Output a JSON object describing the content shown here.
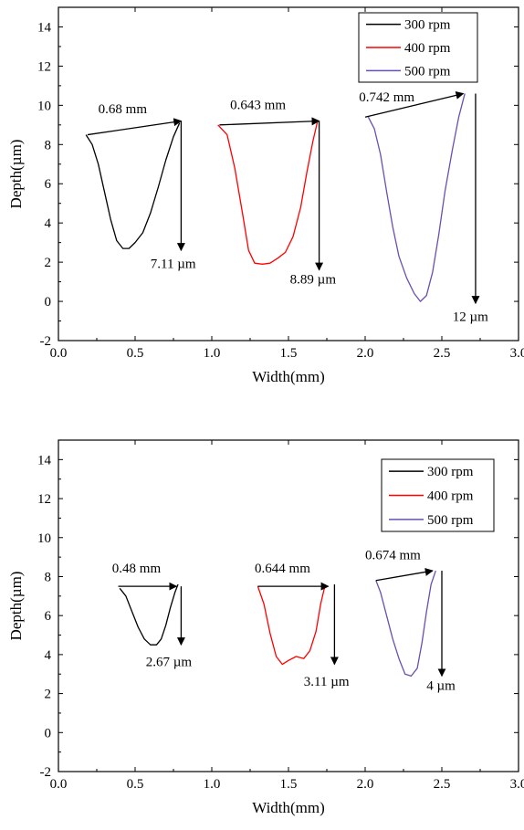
{
  "chart_data": [
    {
      "type": "line",
      "xlabel": "Width(mm)",
      "ylabel": "Depth(µm)",
      "xlim": [
        0.0,
        3.0
      ],
      "ylim": [
        -2,
        15
      ],
      "xticks": [
        "0.0",
        "0.5",
        "1.0",
        "1.5",
        "2.0",
        "2.5",
        "3.0"
      ],
      "yticks": [
        "-2",
        "0",
        "2",
        "4",
        "6",
        "8",
        "10",
        "12",
        "14"
      ],
      "legend_position": "top-right",
      "series": [
        {
          "name": "300 rpm",
          "color": "#000000",
          "x": [
            0.18,
            0.22,
            0.26,
            0.3,
            0.34,
            0.38,
            0.42,
            0.46,
            0.5,
            0.55,
            0.6,
            0.65,
            0.7,
            0.75,
            0.79
          ],
          "y": [
            8.5,
            8.0,
            7.0,
            5.6,
            4.2,
            3.1,
            2.7,
            2.7,
            3.0,
            3.5,
            4.5,
            5.8,
            7.2,
            8.4,
            9.1
          ]
        },
        {
          "name": "400 rpm",
          "color": "#ff0000",
          "x": [
            1.04,
            1.1,
            1.15,
            1.2,
            1.24,
            1.28,
            1.33,
            1.38,
            1.43,
            1.48,
            1.53,
            1.58,
            1.62,
            1.66,
            1.69
          ],
          "y": [
            9.0,
            8.5,
            6.8,
            4.5,
            2.6,
            1.95,
            1.9,
            1.95,
            2.2,
            2.5,
            3.3,
            4.8,
            6.6,
            8.2,
            9.2
          ]
        },
        {
          "name": "500 rpm",
          "color": "#6a4fb0",
          "x": [
            2.02,
            2.06,
            2.1,
            2.14,
            2.18,
            2.22,
            2.27,
            2.32,
            2.36,
            2.4,
            2.44,
            2.48,
            2.52,
            2.57,
            2.61,
            2.65
          ],
          "y": [
            9.4,
            8.8,
            7.5,
            5.6,
            3.8,
            2.3,
            1.2,
            0.4,
            0.0,
            0.3,
            1.5,
            3.4,
            5.6,
            7.8,
            9.4,
            10.6
          ]
        }
      ],
      "annotations": [
        {
          "text": "0.68 mm",
          "kind": "width",
          "x1": 0.19,
          "y1": 8.5,
          "x2": 0.8,
          "y2": 9.2,
          "label_x": 0.26,
          "label_y": 9.6
        },
        {
          "text": "7.11 µm",
          "kind": "depth",
          "x1": 0.8,
          "y1": 9.2,
          "x2": 0.8,
          "y2": 2.6,
          "label_x": 0.6,
          "label_y": 1.7
        },
        {
          "text": "0.643 mm",
          "kind": "width",
          "x1": 1.05,
          "y1": 9.0,
          "x2": 1.7,
          "y2": 9.2,
          "label_x": 1.12,
          "label_y": 9.8
        },
        {
          "text": "8.89 µm",
          "kind": "depth",
          "x1": 1.7,
          "y1": 9.2,
          "x2": 1.7,
          "y2": 1.6,
          "label_x": 1.51,
          "label_y": 0.9
        },
        {
          "text": "0.742 mm",
          "kind": "width",
          "x1": 2.0,
          "y1": 9.4,
          "x2": 2.64,
          "y2": 10.6,
          "label_x": 1.96,
          "label_y": 10.2
        },
        {
          "text": "12 µm",
          "kind": "depth",
          "x1": 2.72,
          "y1": 10.6,
          "x2": 2.72,
          "y2": -0.1,
          "label_x": 2.57,
          "label_y": -1.0
        }
      ]
    },
    {
      "type": "line",
      "xlabel": "Width(mm)",
      "ylabel": "Depth(µm)",
      "xlim": [
        0.0,
        3.0
      ],
      "ylim": [
        -2,
        15
      ],
      "xticks": [
        "0.0",
        "0.5",
        "1.0",
        "1.5",
        "2.0",
        "2.5",
        "3.0"
      ],
      "yticks": [
        "-2",
        "0",
        "2",
        "4",
        "6",
        "8",
        "10",
        "12",
        "14"
      ],
      "legend_position": "top-right",
      "series": [
        {
          "name": "300 rpm",
          "color": "#000000",
          "x": [
            0.4,
            0.44,
            0.48,
            0.52,
            0.56,
            0.6,
            0.64,
            0.67,
            0.7,
            0.73,
            0.76,
            0.78
          ],
          "y": [
            7.4,
            7.0,
            6.2,
            5.4,
            4.8,
            4.5,
            4.5,
            4.8,
            5.5,
            6.4,
            7.2,
            7.6
          ]
        },
        {
          "name": "400 rpm",
          "color": "#ff0000",
          "x": [
            1.3,
            1.34,
            1.38,
            1.42,
            1.46,
            1.5,
            1.55,
            1.6,
            1.64,
            1.68,
            1.71,
            1.74
          ],
          "y": [
            7.5,
            6.6,
            5.1,
            3.9,
            3.5,
            3.7,
            3.9,
            3.8,
            4.2,
            5.2,
            6.6,
            7.6
          ]
        },
        {
          "name": "500 rpm",
          "color": "#6a4fb0",
          "x": [
            2.07,
            2.1,
            2.14,
            2.18,
            2.22,
            2.26,
            2.3,
            2.34,
            2.37,
            2.4,
            2.43,
            2.46
          ],
          "y": [
            7.8,
            7.2,
            6.0,
            4.8,
            3.8,
            3.0,
            2.9,
            3.3,
            4.6,
            6.2,
            7.6,
            8.3
          ]
        }
      ],
      "annotations": [
        {
          "text": "0.48 mm",
          "kind": "width",
          "x1": 0.39,
          "y1": 7.5,
          "x2": 0.77,
          "y2": 7.5,
          "label_x": 0.35,
          "label_y": 8.2
        },
        {
          "text": "2.67 µm",
          "kind": "depth",
          "x1": 0.8,
          "y1": 7.5,
          "x2": 0.8,
          "y2": 4.5,
          "label_x": 0.57,
          "label_y": 3.4
        },
        {
          "text": "0.644 mm",
          "kind": "width",
          "x1": 1.3,
          "y1": 7.5,
          "x2": 1.76,
          "y2": 7.5,
          "label_x": 1.28,
          "label_y": 8.2
        },
        {
          "text": "3.11 µm",
          "kind": "depth",
          "x1": 1.8,
          "y1": 7.6,
          "x2": 1.8,
          "y2": 3.5,
          "label_x": 1.6,
          "label_y": 2.4
        },
        {
          "text": "0.674 mm",
          "kind": "width",
          "x1": 2.07,
          "y1": 7.8,
          "x2": 2.44,
          "y2": 8.3,
          "label_x": 2.0,
          "label_y": 8.9
        },
        {
          "text": "4 µm",
          "kind": "depth",
          "x1": 2.5,
          "y1": 8.3,
          "x2": 2.5,
          "y2": 2.9,
          "label_x": 2.4,
          "label_y": 2.2
        }
      ]
    }
  ]
}
